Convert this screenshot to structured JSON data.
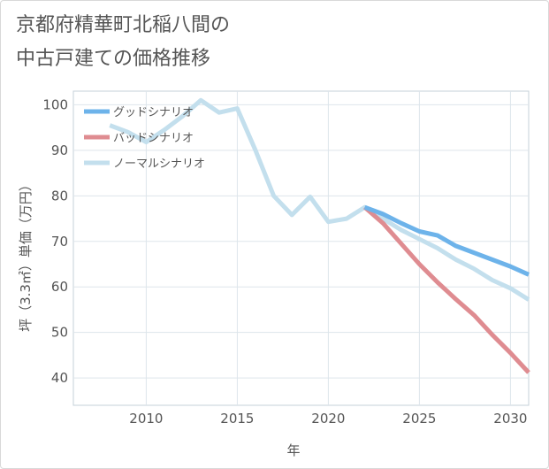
{
  "title_lines": [
    "京都府精華町北稲八間の",
    "中古戸建ての価格推移"
  ],
  "chart_data": {
    "type": "line",
    "title": "京都府精華町北稲八間の中古戸建ての価格推移",
    "xlabel": "年",
    "ylabel": "坪（3.3㎡）単価（万円）",
    "xlim": [
      2006,
      2031
    ],
    "ylim": [
      34,
      103
    ],
    "x_ticks": [
      2010,
      2015,
      2020,
      2025,
      2030
    ],
    "y_ticks": [
      40,
      50,
      60,
      70,
      80,
      90,
      100
    ],
    "grid": true,
    "legend_position": "top-left",
    "series": [
      {
        "name": "グッドシナリオ",
        "color": "#6db3ea",
        "x": [
          2022,
          2023,
          2024,
          2025,
          2026,
          2027,
          2028,
          2029,
          2030,
          2031
        ],
        "y": [
          77.5,
          76.0,
          74.0,
          72.2,
          71.3,
          69.0,
          67.5,
          66.0,
          64.5,
          62.7
        ]
      },
      {
        "name": "バッドシナリオ",
        "color": "#df8c91",
        "x": [
          2022,
          2023,
          2024,
          2025,
          2026,
          2027,
          2028,
          2029,
          2030,
          2031
        ],
        "y": [
          77.5,
          74.0,
          69.5,
          65.0,
          61.0,
          57.3,
          53.8,
          49.5,
          45.5,
          41.2
        ]
      },
      {
        "name": "ノーマルシナリオ",
        "color": "#c3dfed",
        "x": [
          2008,
          2009,
          2010,
          2011,
          2012,
          2013,
          2014,
          2015,
          2016,
          2017,
          2018,
          2019,
          2020,
          2021,
          2022,
          2023,
          2024,
          2025,
          2026,
          2027,
          2028,
          2029,
          2030,
          2031
        ],
        "y": [
          95.5,
          94.0,
          91.8,
          94.5,
          97.5,
          101.0,
          98.3,
          99.2,
          90.0,
          80.0,
          75.8,
          79.8,
          74.3,
          75.0,
          77.5,
          75.0,
          72.5,
          70.5,
          68.5,
          66.0,
          64.0,
          61.5,
          59.7,
          57.2
        ]
      }
    ]
  }
}
